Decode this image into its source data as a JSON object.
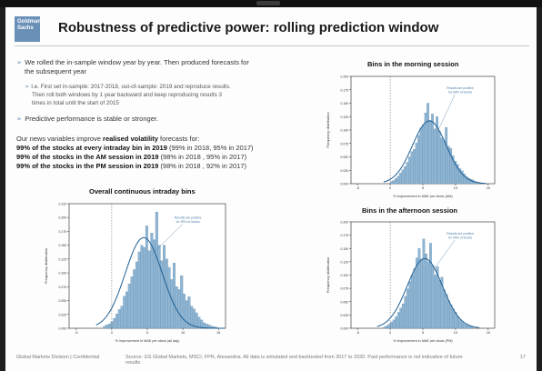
{
  "header": {
    "logo_text": "Goldman Sachs",
    "title": "Robustness of predictive power: rolling prediction window"
  },
  "bullets": {
    "b1_line1": "We rolled the in-sample window year by year. Then produced forecasts for",
    "b1_line2": "the subsequent year",
    "b1_sub_line1": "I.e. First set in-sample: 2017-2018, out-of-sample: 2019 and reproduce results.",
    "b1_sub_line2": "Then roll both windows by 1 year backward and keep reproducing results 3",
    "b1_sub_line3": "times in total until the start of 2015",
    "b2": "Predictive performance is stable or stronger.",
    "news_intro_plain": "Our news variables improve ",
    "news_intro_bold": "realised volatility",
    "news_intro_rest": " forecasts for:",
    "line1_bold": "99% of the stocks at every intraday bin in 2019",
    "line1_rest": " (99% in 2018, 95% in 2017)",
    "line2_bold": "99% of the stocks in the AM session in 2019",
    "line2_rest": " (98% in 2018 , 95% in 2017)",
    "line3_bold": "99% of the stocks in the PM session in 2019",
    "line3_rest": " (98% in 2018 , 92% in 2017)"
  },
  "footer": {
    "left": "Global Markets Division | Confidential",
    "source_line1": "Source: GS Global Markets, MSCI, FPR, Alexandria. All data is simulated and backtested from 2017 to 2020. Past performance is not indicative of future",
    "source_line2": "results",
    "page": "17"
  },
  "chart_data": [
    {
      "type": "histogram",
      "title": "Overall continuous intraday bins",
      "xlabel": "% improvement in MAE per stock (all day)",
      "ylabel": "Frequency distribution",
      "annotation": "Results are positive for 99% of stocks",
      "xlim": [
        -6,
        16
      ],
      "ylim": [
        0,
        0.225
      ],
      "xticks": [
        "-5",
        "0",
        "5",
        "10",
        "15"
      ],
      "yticks": [
        "0.000",
        "0.025",
        "0.050",
        "0.075",
        "0.100",
        "0.125",
        "0.150",
        "0.175",
        "0.200",
        "0.225"
      ],
      "kde_peak": 4.5,
      "kde_sigma": 2.6,
      "bin_width": 0.35,
      "bin_start": -1.2,
      "values": [
        0.004,
        0.006,
        0.008,
        0.012,
        0.018,
        0.026,
        0.034,
        0.04,
        0.058,
        0.066,
        0.08,
        0.093,
        0.106,
        0.12,
        0.138,
        0.15,
        0.146,
        0.185,
        0.14,
        0.172,
        0.16,
        0.21,
        0.15,
        0.122,
        0.15,
        0.125,
        0.11,
        0.088,
        0.118,
        0.075,
        0.07,
        0.095,
        0.062,
        0.05,
        0.057,
        0.04,
        0.035,
        0.028,
        0.02,
        0.015,
        0.01,
        0.008,
        0.006,
        0.004,
        0.003,
        0.002
      ]
    },
    {
      "type": "histogram",
      "title": "Bins in the morning session",
      "xlabel": "% improvement in MAE per stock (AM)",
      "ylabel": "Frequency distribution",
      "annotation": "Results are positive for 99% of stocks",
      "xlim": [
        -6,
        16
      ],
      "ylim": [
        0,
        0.2
      ],
      "xticks": [
        "-5",
        "0",
        "5",
        "10",
        "15"
      ],
      "yticks": [
        "0.000",
        "0.025",
        "0.050",
        "0.075",
        "0.100",
        "0.125",
        "0.150",
        "0.175",
        "0.200"
      ],
      "kde_peak": 6.0,
      "kde_sigma": 2.6,
      "bin_width": 0.35,
      "bin_start": 0.0,
      "values": [
        0.004,
        0.006,
        0.01,
        0.014,
        0.02,
        0.026,
        0.032,
        0.04,
        0.05,
        0.06,
        0.064,
        0.076,
        0.09,
        0.104,
        0.11,
        0.132,
        0.15,
        0.118,
        0.13,
        0.102,
        0.125,
        0.098,
        0.085,
        0.08,
        0.105,
        0.07,
        0.066,
        0.052,
        0.042,
        0.036,
        0.028,
        0.024,
        0.018,
        0.013,
        0.01,
        0.008,
        0.006,
        0.004,
        0.003
      ]
    },
    {
      "type": "histogram",
      "title": "Bins in the afternoon session",
      "xlabel": "% improvement in MAE per stock (PM)",
      "ylabel": "Frequency distribution",
      "annotation": "Results are positive for 99% of stocks",
      "xlim": [
        -6,
        16
      ],
      "ylim": [
        0,
        0.2
      ],
      "xticks": [
        "-5",
        "0",
        "5",
        "10",
        "15"
      ],
      "yticks": [
        "0.000",
        "0.025",
        "0.050",
        "0.075",
        "0.100",
        "0.125",
        "0.150",
        "0.175",
        "0.200"
      ],
      "kde_peak": 5.3,
      "kde_sigma": 2.7,
      "bin_width": 0.35,
      "bin_start": -1.0,
      "values": [
        0.003,
        0.005,
        0.008,
        0.012,
        0.016,
        0.022,
        0.03,
        0.038,
        0.046,
        0.06,
        0.074,
        0.088,
        0.1,
        0.112,
        0.132,
        0.15,
        0.13,
        0.168,
        0.14,
        0.125,
        0.16,
        0.118,
        0.1,
        0.116,
        0.09,
        0.096,
        0.072,
        0.064,
        0.052,
        0.044,
        0.036,
        0.03,
        0.022,
        0.016,
        0.012,
        0.008,
        0.006,
        0.004,
        0.003
      ]
    }
  ]
}
